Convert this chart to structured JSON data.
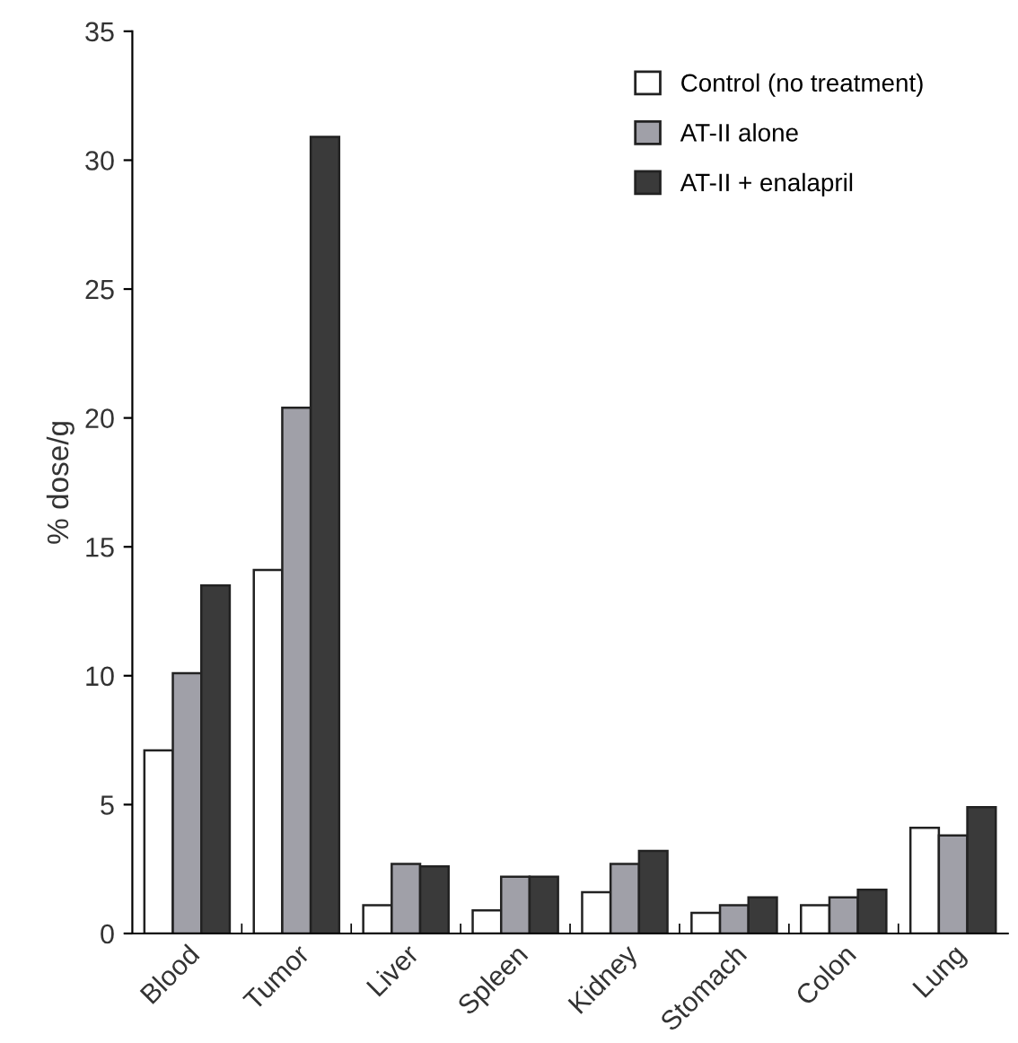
{
  "chart_data": {
    "type": "bar",
    "ylabel": "% dose/g",
    "categories": [
      "Blood",
      "Tumor",
      "Liver",
      "Spleen",
      "Kidney",
      "Stomach",
      "Colon",
      "Lung"
    ],
    "series": [
      {
        "name": "Control (no treatment)",
        "color": "#ffffff",
        "values": [
          7.1,
          14.1,
          1.1,
          0.9,
          1.6,
          0.8,
          1.1,
          4.1
        ]
      },
      {
        "name": "AT-II alone",
        "color": "#a0a0a8",
        "values": [
          10.1,
          20.4,
          2.7,
          2.2,
          2.7,
          1.1,
          1.4,
          3.8
        ]
      },
      {
        "name": "AT-II + enalapril",
        "color": "#3a3a3a",
        "values": [
          13.5,
          30.9,
          2.6,
          2.2,
          3.2,
          1.4,
          1.7,
          4.9
        ]
      }
    ],
    "ylim": [
      0,
      35
    ],
    "yticks": [
      0,
      5,
      10,
      15,
      20,
      25,
      30,
      35
    ],
    "grid": false,
    "legend": "top right"
  }
}
